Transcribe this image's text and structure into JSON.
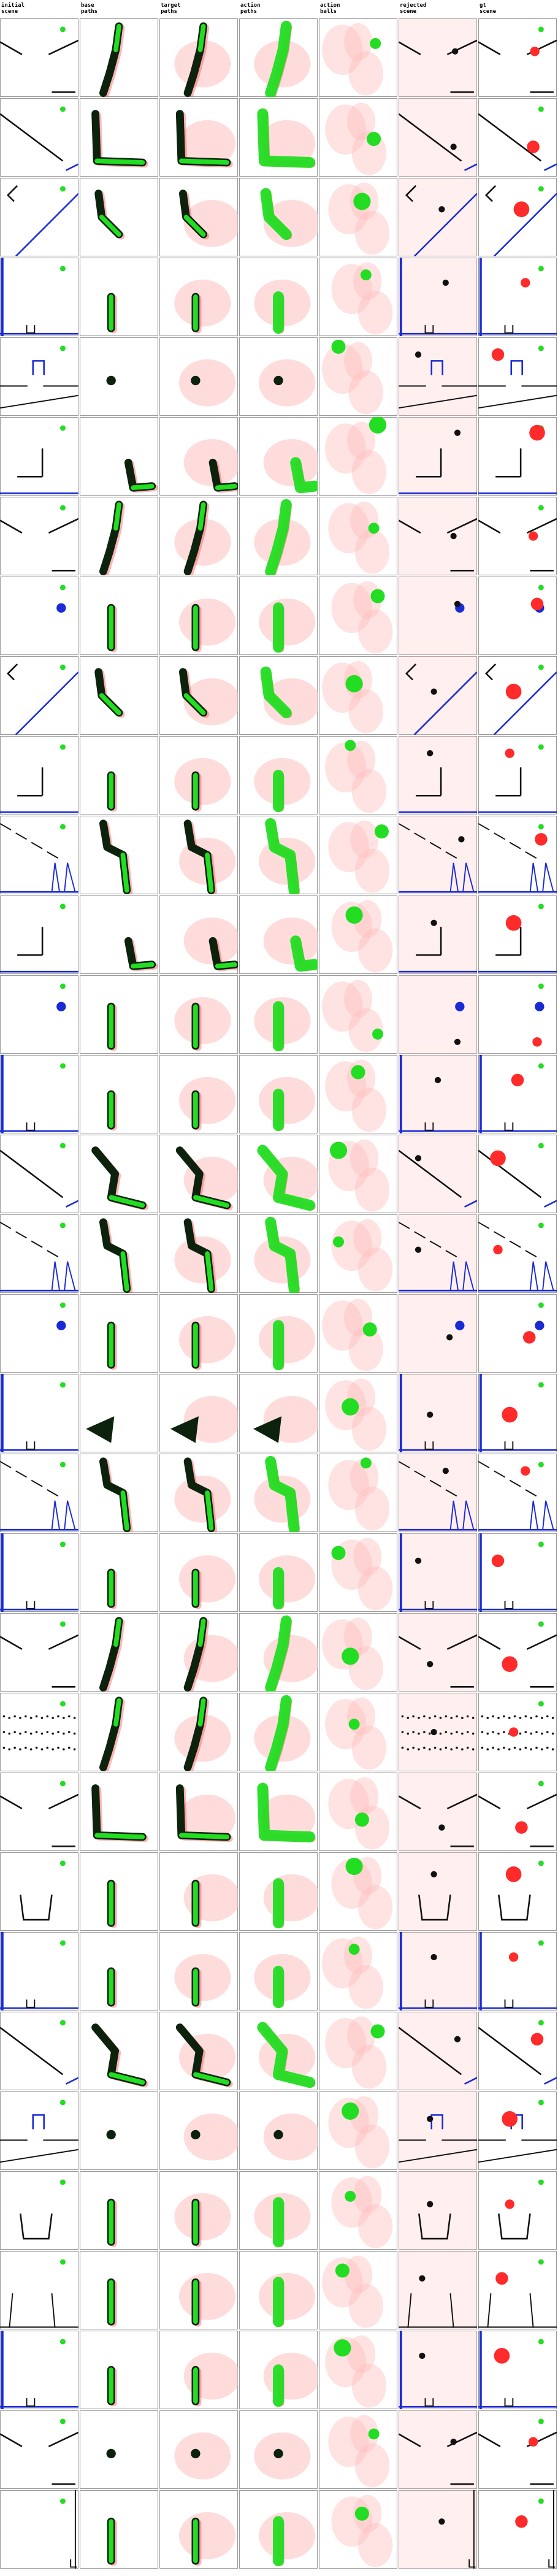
{
  "columns": [
    {
      "line1": "initial",
      "line2": "scene"
    },
    {
      "line1": "base",
      "line2": "paths"
    },
    {
      "line1": "target",
      "line2": "paths"
    },
    {
      "line1": "action",
      "line2": "paths"
    },
    {
      "line1": "action",
      "line2": "balls"
    },
    {
      "line1": "rejected",
      "line2": "scene"
    },
    {
      "line1": "gt",
      "line2": "scene"
    }
  ],
  "colors": {
    "green": "#22dd22",
    "red": "#ff2a2a",
    "blue": "#1a2bd6",
    "black": "#111111",
    "pink": "#ffbfbf",
    "dark": "#0c220c"
  },
  "rows": [
    {
      "scene": "ramp-v",
      "path": "diag-up",
      "ball": [
        0.72,
        0.32
      ]
    },
    {
      "scene": "slope-long",
      "path": "L-shape",
      "ball": [
        0.7,
        0.52
      ]
    },
    {
      "scene": "cup-tilt",
      "path": "elbow",
      "ball": [
        0.55,
        0.3
      ]
    },
    {
      "scene": "wall-left",
      "path": "short-bar",
      "ball": [
        0.6,
        0.22
      ]
    },
    {
      "scene": "gate-wedge",
      "path": "dot",
      "ball": [
        0.25,
        0.12
      ]
    },
    {
      "scene": "L-drop",
      "path": "blob",
      "ball": [
        0.75,
        0.1
      ]
    },
    {
      "scene": "ramp-v",
      "path": "diag-up",
      "ball": [
        0.7,
        0.4
      ]
    },
    {
      "scene": "two-balls",
      "path": "bar",
      "ball": [
        0.75,
        0.25
      ]
    },
    {
      "scene": "cup-tilt",
      "path": "elbow",
      "ball": [
        0.45,
        0.35
      ]
    },
    {
      "scene": "L-drop",
      "path": "short-bar",
      "ball": [
        0.4,
        0.12
      ]
    },
    {
      "scene": "steps-cup",
      "path": "stair",
      "ball": [
        0.8,
        0.2
      ]
    },
    {
      "scene": "L-drop",
      "path": "blob",
      "ball": [
        0.45,
        0.25
      ]
    },
    {
      "scene": "two-balls",
      "path": "bar",
      "ball": [
        0.75,
        0.75
      ]
    },
    {
      "scene": "wall-left",
      "path": "short-bar",
      "ball": [
        0.5,
        0.22
      ]
    },
    {
      "scene": "slope-long",
      "path": "zigzag",
      "ball": [
        0.25,
        0.2
      ]
    },
    {
      "scene": "steps-cup",
      "path": "stair",
      "ball": [
        0.25,
        0.35
      ]
    },
    {
      "scene": "two-balls",
      "path": "bar",
      "ball": [
        0.65,
        0.45
      ]
    },
    {
      "scene": "wall-left",
      "path": "triangle",
      "ball": [
        0.4,
        0.42
      ]
    },
    {
      "scene": "steps-cup",
      "path": "stair",
      "ball": [
        0.6,
        0.12
      ]
    },
    {
      "scene": "wall-left",
      "path": "short-bar",
      "ball": [
        0.25,
        0.25
      ]
    },
    {
      "scene": "ramp-v",
      "path": "diag-up",
      "ball": [
        0.4,
        0.55
      ]
    },
    {
      "scene": "pegs",
      "path": "diag-up",
      "ball": [
        0.45,
        0.4
      ]
    },
    {
      "scene": "ramp-v",
      "path": "L-shape",
      "ball": [
        0.55,
        0.6
      ]
    },
    {
      "scene": "cup",
      "path": "bar",
      "ball": [
        0.45,
        0.18
      ]
    },
    {
      "scene": "wall-left",
      "path": "short-bar",
      "ball": [
        0.45,
        0.22
      ]
    },
    {
      "scene": "slope-long",
      "path": "zigzag",
      "ball": [
        0.75,
        0.25
      ]
    },
    {
      "scene": "gate-wedge",
      "path": "dot",
      "ball": [
        0.4,
        0.25
      ]
    },
    {
      "scene": "cup",
      "path": "bar",
      "ball": [
        0.4,
        0.32
      ]
    },
    {
      "scene": "slope-mid",
      "path": "bar",
      "ball": [
        0.3,
        0.25
      ]
    },
    {
      "scene": "wall-left",
      "path": "short-bar",
      "ball": [
        0.3,
        0.22
      ]
    },
    {
      "scene": "ramp-v",
      "path": "dot",
      "ball": [
        0.7,
        0.3
      ]
    },
    {
      "scene": "cup-right",
      "path": "bar",
      "ball": [
        0.55,
        0.3
      ]
    }
  ]
}
